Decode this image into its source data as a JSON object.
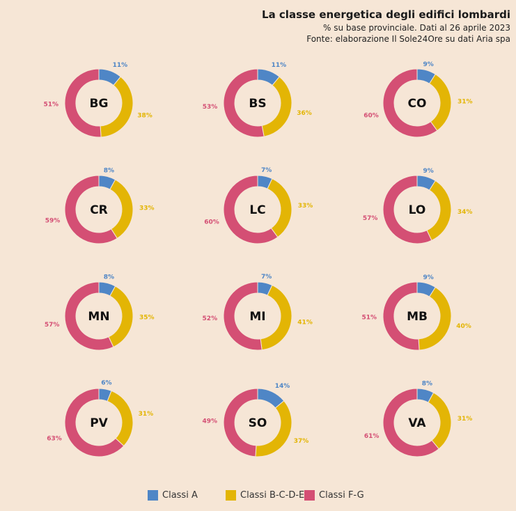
{
  "header": {
    "title": "La classe energetica degli edifici lombardi",
    "subtitle": "% su base provinciale. Dati al 26 aprile 2023",
    "source": "Fonte: elaborazione Il Sole24Ore su dati Aria spa"
  },
  "colors": {
    "a": "#4f86c6",
    "bcde": "#e3b505",
    "fg": "#d44f74"
  },
  "legend": [
    {
      "label": "Classi A",
      "color": "#4f86c6"
    },
    {
      "label": "Classi B-C-D-E",
      "color": "#e3b505"
    },
    {
      "label": "Classi F-G",
      "color": "#d44f74"
    }
  ],
  "chart_data": {
    "type": "pie",
    "categories": [
      "Classi A",
      "Classi B-C-D-E",
      "Classi F-G"
    ],
    "label_suffix": "%",
    "charts": [
      {
        "name": "BG",
        "values": [
          11,
          38,
          51
        ]
      },
      {
        "name": "BS",
        "values": [
          11,
          36,
          53
        ]
      },
      {
        "name": "CO",
        "values": [
          9,
          31,
          60
        ]
      },
      {
        "name": "CR",
        "values": [
          8,
          33,
          59
        ]
      },
      {
        "name": "LC",
        "values": [
          7,
          33,
          60
        ]
      },
      {
        "name": "LO",
        "values": [
          9,
          34,
          57
        ]
      },
      {
        "name": "MN",
        "values": [
          8,
          35,
          57
        ]
      },
      {
        "name": "MI",
        "values": [
          7,
          41,
          52
        ]
      },
      {
        "name": "MB",
        "values": [
          9,
          40,
          51
        ]
      },
      {
        "name": "PV",
        "values": [
          6,
          31,
          63
        ]
      },
      {
        "name": "SO",
        "values": [
          14,
          37,
          49
        ]
      },
      {
        "name": "VA",
        "values": [
          8,
          31,
          61
        ]
      }
    ]
  }
}
